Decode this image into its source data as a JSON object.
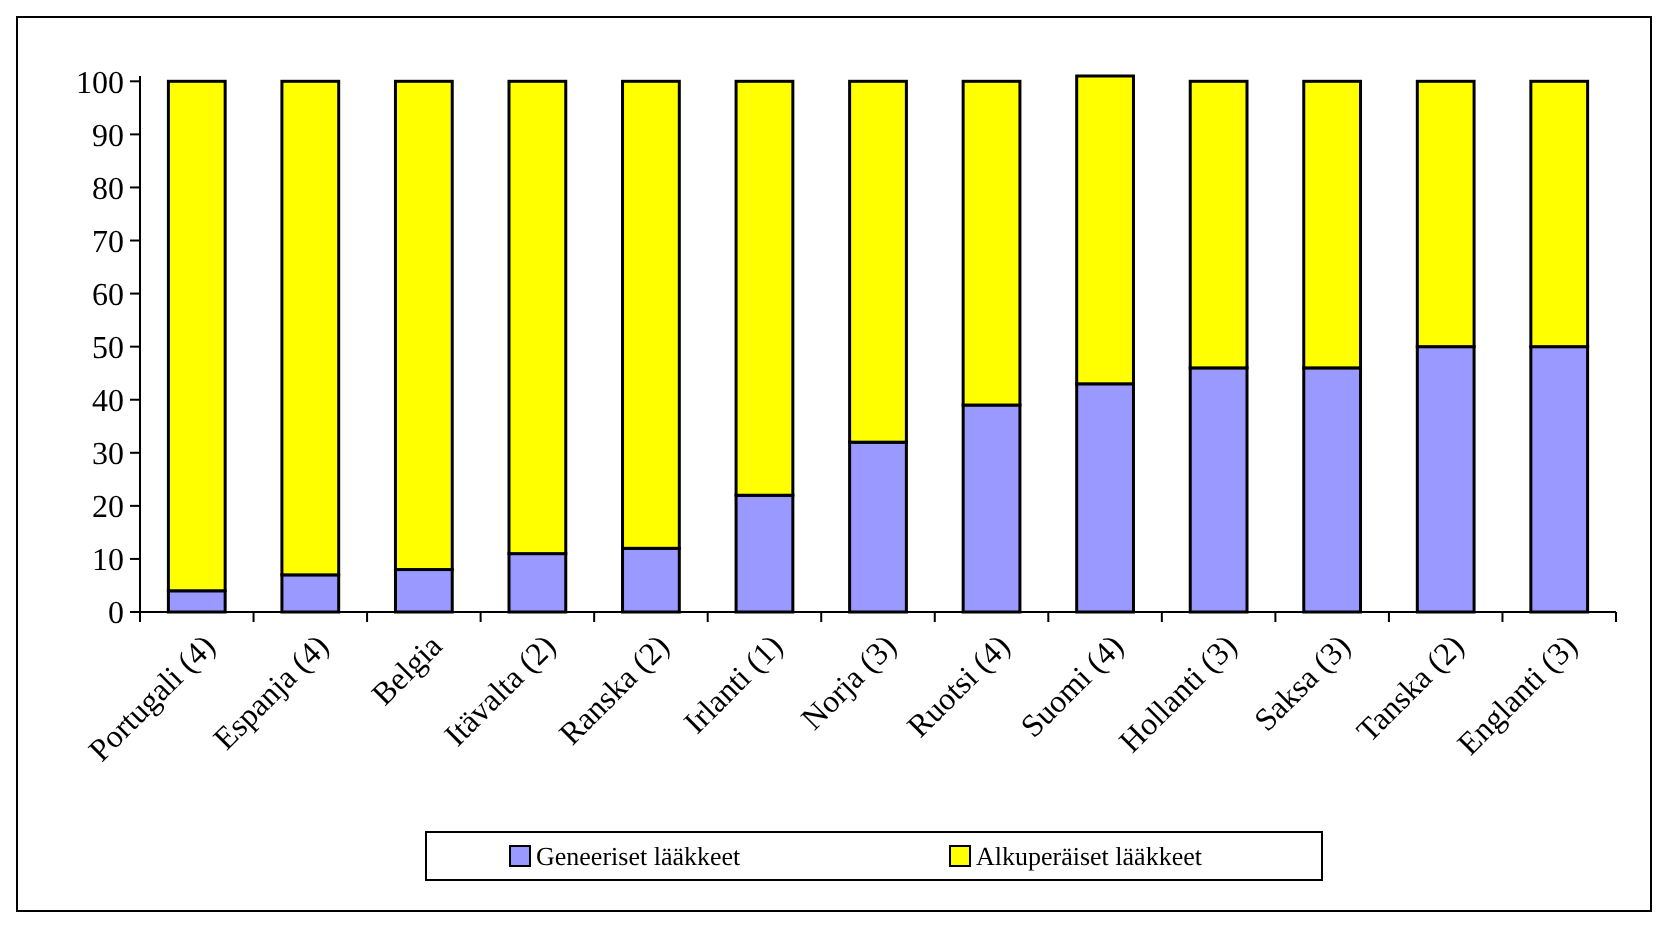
{
  "chart_data": {
    "type": "bar",
    "stacked": true,
    "categories": [
      "Portugali (4)",
      "Espanja (4)",
      "Belgia",
      "Itävalta (2)",
      "Ranska (2)",
      "Irlanti (1)",
      "Norja (3)",
      "Ruotsi (4)",
      "Suomi (4)",
      "Hollanti (3)",
      "Saksa (3)",
      "Tanska (2)",
      "Englanti (3)"
    ],
    "series": [
      {
        "name": "Geneeriset lääkkeet",
        "color": "#9999ff",
        "values": [
          4,
          7,
          8,
          11,
          12,
          22,
          32,
          39,
          43,
          46,
          46,
          50,
          50
        ]
      },
      {
        "name": "Alkuperäiset lääkkeet",
        "color": "#ffff00",
        "values": [
          96,
          93,
          92,
          89,
          88,
          78,
          68,
          61,
          58,
          54,
          54,
          50,
          50
        ]
      }
    ],
    "ylim": [
      0,
      101
    ],
    "yticks": [
      0,
      10,
      20,
      30,
      40,
      50,
      60,
      70,
      80,
      90,
      100
    ],
    "legend": "bottom",
    "grid": false
  }
}
